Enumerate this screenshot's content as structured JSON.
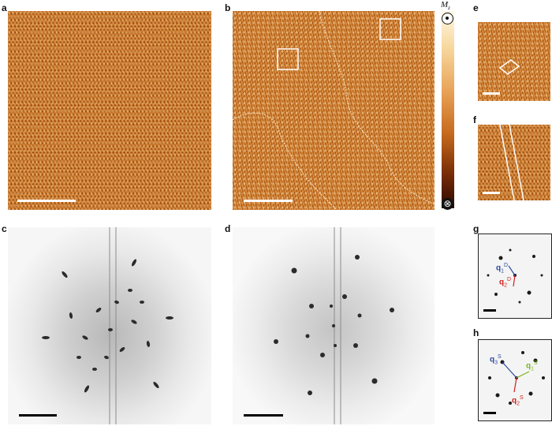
{
  "labels": {
    "a": "a",
    "b": "b",
    "c": "c",
    "d": "d",
    "e": "e",
    "f": "f",
    "g": "g",
    "h": "h"
  },
  "colorbar": {
    "quantity": "M",
    "quantity_sub": "z",
    "top_symbol": "⊙",
    "bottom_symbol": "⊗"
  },
  "panel_g": {
    "q1": {
      "base": "q",
      "sub": "1",
      "sup": "D",
      "color": "#2a4aa0"
    },
    "q2": {
      "base": "q",
      "sub": "2",
      "sup": "D",
      "color": "#d02020"
    }
  },
  "panel_h": {
    "q1": {
      "base": "q",
      "sub": "1",
      "sup": "S",
      "color": "#7ab51d"
    },
    "q2": {
      "base": "q",
      "sub": "2",
      "sup": "S",
      "color": "#d02020"
    },
    "q3": {
      "base": "q",
      "sub": "3",
      "sup": "S",
      "color": "#2a4aa0"
    }
  },
  "colors": {
    "stm_orange": "#c46a1c",
    "fft_gray": "#d0d0d0",
    "arrow_blue": "#2a4aa0",
    "arrow_red": "#d02020",
    "arrow_green": "#7ab51d"
  }
}
